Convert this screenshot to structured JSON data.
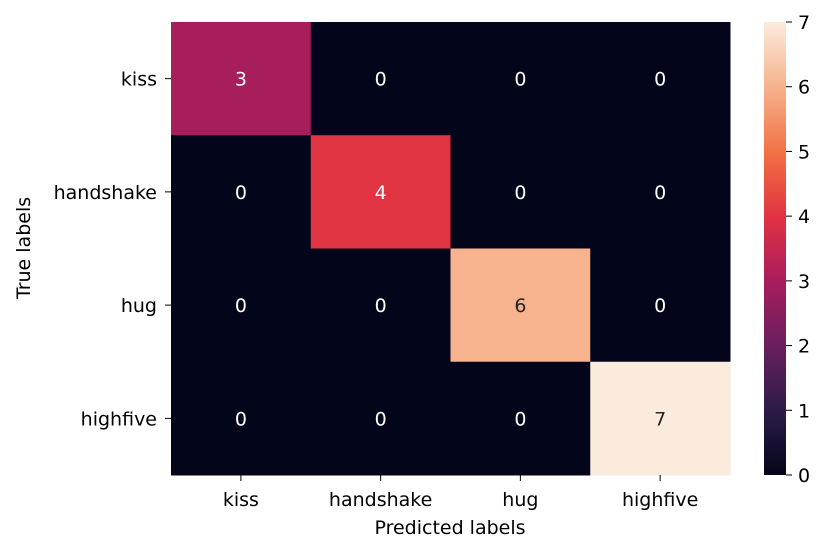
{
  "chart_data": {
    "type": "heatmap",
    "title": "",
    "xlabel": "Predicted labels",
    "ylabel": "True labels",
    "x_categories": [
      "kiss",
      "handshake",
      "hug",
      "highfive"
    ],
    "y_categories": [
      "kiss",
      "handshake",
      "hug",
      "highfive"
    ],
    "matrix": [
      [
        3,
        0,
        0,
        0
      ],
      [
        0,
        4,
        0,
        0
      ],
      [
        0,
        0,
        6,
        0
      ],
      [
        0,
        0,
        0,
        7
      ]
    ],
    "colorbar": {
      "min": 0,
      "max": 7,
      "ticks": [
        0,
        1,
        2,
        3,
        4,
        5,
        6,
        7
      ],
      "colormap": "rocket"
    },
    "grid": false,
    "legend": "colorbar-right"
  }
}
